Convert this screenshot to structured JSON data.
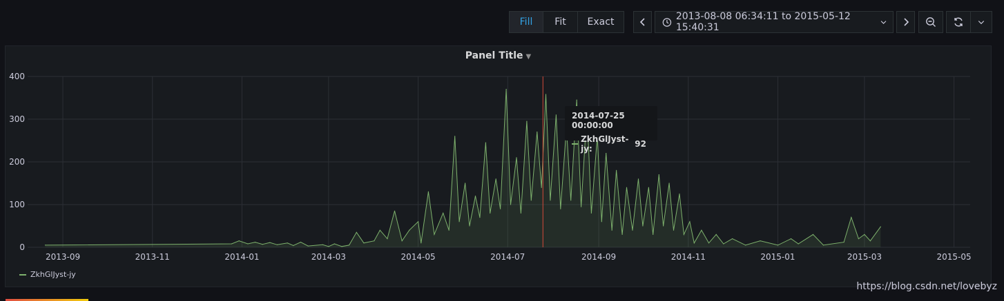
{
  "toolbar": {
    "zoom_modes": [
      "Fill",
      "Fit",
      "Exact"
    ],
    "active_zoom_mode": "Fill",
    "time_range": "2013-08-08 06:34:11 to 2015-05-12 15:40:31"
  },
  "panel": {
    "title": "Panel Title"
  },
  "tooltip": {
    "time": "2014-07-25 00:00:00",
    "series_label": "ZkhGlJyst-jy:",
    "value": "92"
  },
  "legend": {
    "series_name": "ZkhGlJyst-jy"
  },
  "watermark": "https://blog.csdn.net/lovebyz",
  "colors": {
    "series": "#7eb26d",
    "cursor": "#d44a3a",
    "active_button": "#33a2e5"
  },
  "chart_data": {
    "type": "line",
    "title": "Panel Title",
    "ylim": [
      0,
      400
    ],
    "xlim": [
      "2013-08-08",
      "2015-05-12"
    ],
    "yticks": [
      0,
      100,
      200,
      300,
      400
    ],
    "xticks": [
      "2013-09",
      "2013-11",
      "2014-01",
      "2014-03",
      "2014-05",
      "2014-07",
      "2014-09",
      "2014-11",
      "2015-01",
      "2015-03",
      "2015-05"
    ],
    "grid": true,
    "legend_position": "bottom-left",
    "cursor_x": "2014-07-25",
    "series": [
      {
        "name": "ZkhGlJyst-jy",
        "points": [
          [
            "2013-08-20",
            5
          ],
          [
            "2013-12-25",
            8
          ],
          [
            "2013-12-30",
            15
          ],
          [
            "2014-01-05",
            8
          ],
          [
            "2014-01-10",
            12
          ],
          [
            "2014-01-15",
            7
          ],
          [
            "2014-01-20",
            11
          ],
          [
            "2014-01-25",
            6
          ],
          [
            "2014-02-01",
            10
          ],
          [
            "2014-02-05",
            4
          ],
          [
            "2014-02-10",
            12
          ],
          [
            "2014-02-15",
            3
          ],
          [
            "2014-02-25",
            6
          ],
          [
            "2014-03-01",
            2
          ],
          [
            "2014-03-05",
            8
          ],
          [
            "2014-03-10",
            2
          ],
          [
            "2014-03-15",
            5
          ],
          [
            "2014-03-20",
            35
          ],
          [
            "2014-03-25",
            10
          ],
          [
            "2014-04-01",
            15
          ],
          [
            "2014-04-05",
            40
          ],
          [
            "2014-04-10",
            20
          ],
          [
            "2014-04-15",
            85
          ],
          [
            "2014-04-20",
            15
          ],
          [
            "2014-04-25",
            40
          ],
          [
            "2014-05-01",
            60
          ],
          [
            "2014-05-03",
            10
          ],
          [
            "2014-05-08",
            130
          ],
          [
            "2014-05-12",
            30
          ],
          [
            "2014-05-18",
            80
          ],
          [
            "2014-05-22",
            40
          ],
          [
            "2014-05-26",
            260
          ],
          [
            "2014-05-29",
            60
          ],
          [
            "2014-06-02",
            150
          ],
          [
            "2014-06-05",
            50
          ],
          [
            "2014-06-09",
            120
          ],
          [
            "2014-06-12",
            70
          ],
          [
            "2014-06-16",
            245
          ],
          [
            "2014-06-19",
            80
          ],
          [
            "2014-06-23",
            160
          ],
          [
            "2014-06-26",
            90
          ],
          [
            "2014-06-30",
            370
          ],
          [
            "2014-07-03",
            100
          ],
          [
            "2014-07-07",
            210
          ],
          [
            "2014-07-10",
            80
          ],
          [
            "2014-07-14",
            295
          ],
          [
            "2014-07-17",
            110
          ],
          [
            "2014-07-21",
            270
          ],
          [
            "2014-07-24",
            140
          ],
          [
            "2014-07-27",
            358
          ],
          [
            "2014-07-30",
            110
          ],
          [
            "2014-08-03",
            310
          ],
          [
            "2014-08-06",
            90
          ],
          [
            "2014-08-10",
            280
          ],
          [
            "2014-08-13",
            110
          ],
          [
            "2014-08-17",
            345
          ],
          [
            "2014-08-20",
            95
          ],
          [
            "2014-08-24",
            320
          ],
          [
            "2014-08-27",
            80
          ],
          [
            "2014-08-31",
            260
          ],
          [
            "2014-09-03",
            60
          ],
          [
            "2014-09-06",
            220
          ],
          [
            "2014-09-10",
            40
          ],
          [
            "2014-09-13",
            180
          ],
          [
            "2014-09-17",
            30
          ],
          [
            "2014-09-20",
            140
          ],
          [
            "2014-09-24",
            40
          ],
          [
            "2014-09-28",
            160
          ],
          [
            "2014-10-01",
            50
          ],
          [
            "2014-10-05",
            140
          ],
          [
            "2014-10-08",
            30
          ],
          [
            "2014-10-12",
            170
          ],
          [
            "2014-10-15",
            50
          ],
          [
            "2014-10-19",
            150
          ],
          [
            "2014-10-22",
            40
          ],
          [
            "2014-10-26",
            125
          ],
          [
            "2014-10-29",
            30
          ],
          [
            "2014-11-02",
            60
          ],
          [
            "2014-11-05",
            10
          ],
          [
            "2014-11-10",
            40
          ],
          [
            "2014-11-15",
            10
          ],
          [
            "2014-11-20",
            30
          ],
          [
            "2014-11-25",
            8
          ],
          [
            "2014-12-01",
            20
          ],
          [
            "2014-12-10",
            5
          ],
          [
            "2014-12-20",
            15
          ],
          [
            "2015-01-01",
            5
          ],
          [
            "2015-01-10",
            20
          ],
          [
            "2015-01-15",
            8
          ],
          [
            "2015-01-25",
            30
          ],
          [
            "2015-02-01",
            5
          ],
          [
            "2015-02-15",
            12
          ],
          [
            "2015-02-20",
            70
          ],
          [
            "2015-02-25",
            20
          ],
          [
            "2015-03-01",
            30
          ],
          [
            "2015-03-05",
            15
          ],
          [
            "2015-03-12",
            48
          ]
        ]
      }
    ]
  }
}
